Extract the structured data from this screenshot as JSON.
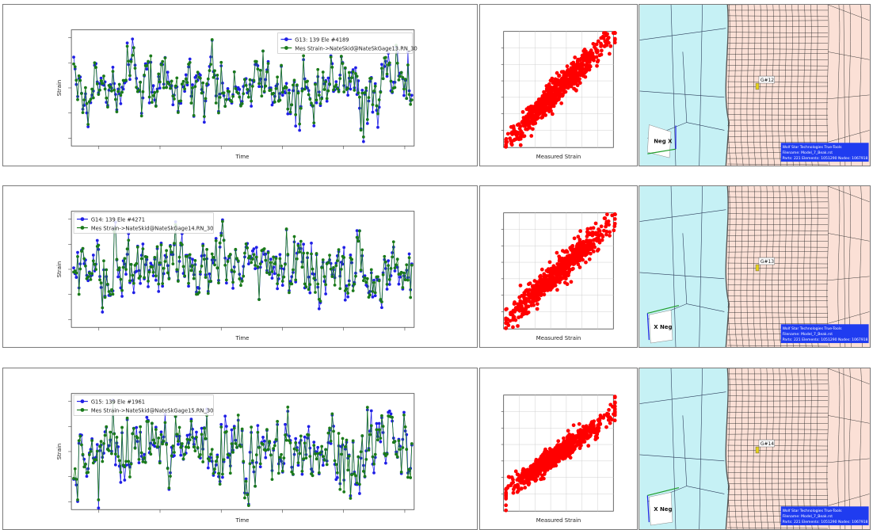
{
  "colors": {
    "gage_series": "#1f1fe6",
    "measured_series": "#1a7a1a",
    "scatter": "#ff0000",
    "water": "#c6f1f5",
    "mesh": "#fbe0d6",
    "infobox": "#1f3cf0"
  },
  "rows": [
    {
      "chart_data": [
        {
          "type": "line",
          "xlabel": "Time",
          "ylabel": "Strain",
          "legend_position": "top-right",
          "series": [
            {
              "name": "G13: 139 Ele #4189",
              "color": "#1f1fe6"
            },
            {
              "name": "Mes Strain->NateSkid@NateSkGage13.RN_30",
              "color": "#1a7a1a"
            }
          ],
          "seed": 13,
          "amplitude": 1.0
        },
        {
          "type": "scatter",
          "xlabel": "Measured Strain",
          "ylabel": "",
          "color": "#ff0000",
          "grid": true,
          "seed": 131,
          "slope": 1.0,
          "spread": 0.14
        }
      ],
      "mesh": {
        "gage_label": "G#12",
        "triad_label": "Neg X",
        "info_lines": [
          "Wolf Star Technologies True-Tools",
          "Filename: Model_7_Beak.rst",
          "Parts: 221 Elements: 1051290 Nodes: 1067918"
        ]
      }
    },
    {
      "chart_data": [
        {
          "type": "line",
          "xlabel": "Time",
          "ylabel": "Strain",
          "legend_position": "top-left",
          "series": [
            {
              "name": "G14: 139 Ele #4271",
              "color": "#1f1fe6"
            },
            {
              "name": "Mes Strain->NateSkid@NateSkGage14.RN_30",
              "color": "#1a7a1a"
            }
          ],
          "seed": 14,
          "amplitude": 1.0
        },
        {
          "type": "scatter",
          "xlabel": "Measured Strain",
          "ylabel": "",
          "color": "#ff0000",
          "grid": true,
          "seed": 141,
          "slope": 0.9,
          "spread": 0.15
        }
      ],
      "mesh": {
        "gage_label": "G#13",
        "triad_label": "X Neg",
        "info_lines": [
          "Wolf Star Technologies True-Tools",
          "Filename: Model_7_Beak.rst",
          "Parts: 221 Elements: 1051290 Nodes: 1067918"
        ]
      }
    },
    {
      "chart_data": [
        {
          "type": "line",
          "xlabel": "Time",
          "ylabel": "Strain",
          "legend_position": "top-left",
          "series": [
            {
              "name": "G15: 139 Ele #1961",
              "color": "#1f1fe6"
            },
            {
              "name": "Mes Strain->NateSkid@NateSkGage15.RN_30",
              "color": "#1a7a1a"
            }
          ],
          "seed": 15,
          "amplitude": 1.1
        },
        {
          "type": "scatter",
          "xlabel": "Measured Strain",
          "ylabel": "",
          "color": "#ff0000",
          "grid": true,
          "seed": 151,
          "slope": 0.7,
          "spread": 0.11
        }
      ],
      "mesh": {
        "gage_label": "G#14",
        "triad_label": "X Neg",
        "info_lines": [
          "Wolf Star Technologies True-Tools",
          "Filename: Model_7_Beak.rst",
          "Parts: 221 Elements: 1051290 Nodes: 1067918"
        ]
      }
    }
  ]
}
